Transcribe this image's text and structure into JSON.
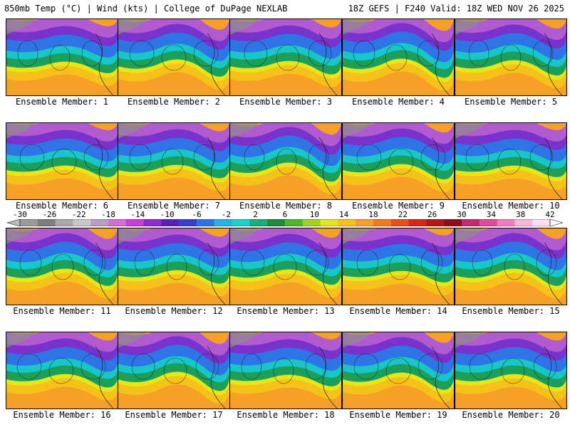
{
  "header": {
    "title_left": "850mb Temp (°C) | Wind (kts) | College of DuPage NEXLAB",
    "title_right": "18Z GEFS | F240 Valid: 18Z WED NOV 26 2025"
  },
  "members": [
    {
      "label": "Ensemble Member: 1"
    },
    {
      "label": "Ensemble Member: 2"
    },
    {
      "label": "Ensemble Member: 3"
    },
    {
      "label": "Ensemble Member: 4"
    },
    {
      "label": "Ensemble Member: 5"
    },
    {
      "label": "Ensemble Member: 6"
    },
    {
      "label": "Ensemble Member: 7"
    },
    {
      "label": "Ensemble Member: 8"
    },
    {
      "label": "Ensemble Member: 9"
    },
    {
      "label": "Ensemble Member: 10"
    },
    {
      "label": "Ensemble Member: 11"
    },
    {
      "label": "Ensemble Member: 12"
    },
    {
      "label": "Ensemble Member: 13"
    },
    {
      "label": "Ensemble Member: 14"
    },
    {
      "label": "Ensemble Member: 15"
    },
    {
      "label": "Ensemble Member: 16"
    },
    {
      "label": "Ensemble Member: 17"
    },
    {
      "label": "Ensemble Member: 18"
    },
    {
      "label": "Ensemble Member: 19"
    },
    {
      "label": "Ensemble Member: 20"
    }
  ],
  "colorbar": {
    "tick_labels": [
      "-30",
      "-26",
      "-22",
      "-18",
      "-14",
      "-10",
      "-6",
      "-2",
      "2",
      "6",
      "10",
      "14",
      "18",
      "22",
      "26",
      "30",
      "34",
      "38",
      "42"
    ],
    "colors": [
      "#9a9a9a",
      "#7d7d7d",
      "#a9a9a9",
      "#c9c9c9",
      "#b7a0c8",
      "#d26fd6",
      "#c940d8",
      "#8c2bd0",
      "#5a1fb8",
      "#3b3fd1",
      "#2f74e6",
      "#22b6e8",
      "#18d3c8",
      "#17b07a",
      "#1d8c3c",
      "#4fb52a",
      "#9fd61c",
      "#e6e61a",
      "#f5c21a",
      "#f7a028",
      "#f57a1e",
      "#ee4b1b",
      "#d8261a",
      "#b8141a",
      "#8f0f18",
      "#c8286e",
      "#e04a9a",
      "#f07cc0",
      "#f7b8de",
      "#ffe0f2"
    ]
  }
}
